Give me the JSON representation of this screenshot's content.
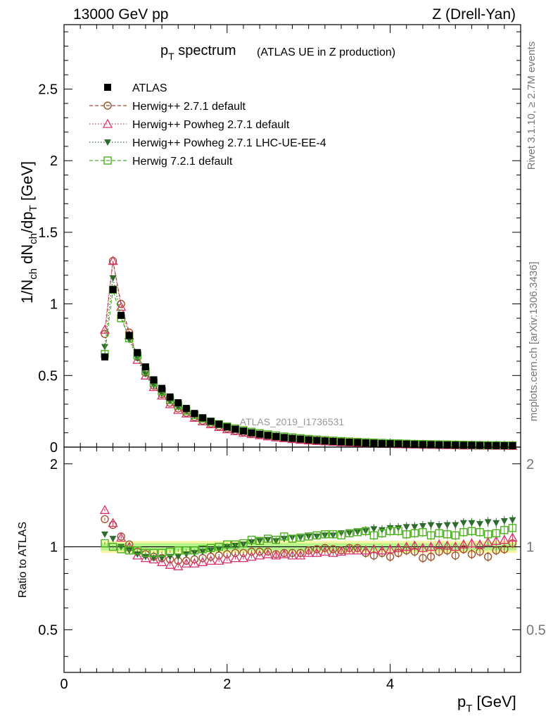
{
  "header": {
    "left": "13000 GeV pp",
    "right": "Z (Drell-Yan)"
  },
  "title": {
    "main": "p_T spectrum",
    "sub": "(ATLAS UE in Z production)"
  },
  "side": {
    "rivet": "Rivet 3.1.10, ≥ 2.7M events",
    "mcplots": "mcplots.cern.ch [arXiv:1306.3436]"
  },
  "watermark": "ATLAS_2019_I1736531",
  "chart_data": [
    {
      "type": "scatter",
      "title": "p_T spectrum (ATLAS UE in Z production)",
      "ylabel": "1/N_ch dN_ch/dp_T [GeV]",
      "xlim": [
        0,
        5.6
      ],
      "ylim": [
        0,
        2.95
      ],
      "yticks": [
        0,
        0.5,
        1,
        1.5,
        2,
        2.5
      ],
      "ytick_labels": [
        "0",
        "0.5",
        "1",
        "1.5",
        "2",
        "2.5"
      ],
      "legend": [
        {
          "label": "ATLAS",
          "marker": "filled-square",
          "color": "#000000"
        },
        {
          "label": "Herwig++ 2.7.1 default",
          "marker": "open-circle",
          "color": "#a0522d"
        },
        {
          "label": "Herwig++ Powheg 2.7.1 default",
          "marker": "open-triangle",
          "color": "#d6336c"
        },
        {
          "label": "Herwig++ Powheg 2.7.1 LHC-UE-EE-4",
          "marker": "filled-triangle-down",
          "color": "#2f6b2f"
        },
        {
          "label": "Herwig 7.2.1 default",
          "marker": "open-square",
          "color": "#4caf1e"
        }
      ],
      "x": [
        0.5,
        0.6,
        0.7,
        0.8,
        0.9,
        1.0,
        1.1,
        1.2,
        1.3,
        1.4,
        1.5,
        1.6,
        1.7,
        1.8,
        1.9,
        2.0,
        2.1,
        2.2,
        2.3,
        2.4,
        2.5,
        2.6,
        2.7,
        2.8,
        2.9,
        3.0,
        3.1,
        3.2,
        3.3,
        3.4,
        3.5,
        3.6,
        3.7,
        3.8,
        3.9,
        4.0,
        4.1,
        4.2,
        4.3,
        4.4,
        4.5,
        4.6,
        4.7,
        4.8,
        4.9,
        5.0,
        5.1,
        5.2,
        5.3,
        5.4,
        5.5
      ],
      "series": [
        {
          "name": "ATLAS",
          "values": [
            0.63,
            1.1,
            0.92,
            0.78,
            0.66,
            0.56,
            0.47,
            0.41,
            0.35,
            0.31,
            0.27,
            0.235,
            0.205,
            0.18,
            0.16,
            0.14,
            0.125,
            0.112,
            0.1,
            0.09,
            0.082,
            0.074,
            0.067,
            0.061,
            0.056,
            0.051,
            0.047,
            0.043,
            0.04,
            0.037,
            0.034,
            0.032,
            0.029,
            0.027,
            0.025,
            0.024,
            0.022,
            0.021,
            0.019,
            0.018,
            0.017,
            0.016,
            0.015,
            0.014,
            0.013,
            0.013,
            0.012,
            0.011,
            0.011,
            0.01,
            0.01
          ]
        },
        {
          "name": "Herwig++ 2.7.1 default",
          "values": [
            0.79,
            1.3,
            1.0,
            0.8,
            0.63,
            0.52,
            0.43,
            0.37,
            0.31,
            0.27,
            0.24,
            0.21,
            0.185,
            0.165,
            0.145,
            0.13,
            0.115,
            0.104,
            0.094,
            0.085,
            0.077,
            0.069,
            0.063,
            0.057,
            0.052,
            0.048,
            0.044,
            0.041,
            0.038,
            0.035,
            0.032,
            0.03,
            0.027,
            0.025,
            0.023,
            0.022,
            0.02,
            0.019,
            0.018,
            0.016,
            0.016,
            0.015,
            0.014,
            0.013,
            0.012,
            0.012,
            0.011,
            0.011,
            0.01,
            0.01,
            0.009
          ]
        },
        {
          "name": "Herwig++ Powheg 2.7.1 default",
          "values": [
            0.82,
            1.3,
            0.98,
            0.78,
            0.61,
            0.5,
            0.42,
            0.36,
            0.3,
            0.26,
            0.235,
            0.205,
            0.18,
            0.16,
            0.14,
            0.125,
            0.112,
            0.1,
            0.091,
            0.083,
            0.075,
            0.068,
            0.062,
            0.056,
            0.051,
            0.047,
            0.043,
            0.04,
            0.037,
            0.034,
            0.032,
            0.029,
            0.027,
            0.025,
            0.023,
            0.022,
            0.021,
            0.019,
            0.018,
            0.017,
            0.016,
            0.015,
            0.014,
            0.013,
            0.012,
            0.012,
            0.011,
            0.011,
            0.01,
            0.01,
            0.009
          ]
        },
        {
          "name": "Herwig++ Powheg 2.7.1 LHC-UE-EE-4",
          "values": [
            0.7,
            1.18,
            0.92,
            0.75,
            0.62,
            0.51,
            0.43,
            0.37,
            0.32,
            0.28,
            0.25,
            0.22,
            0.195,
            0.175,
            0.157,
            0.142,
            0.128,
            0.116,
            0.105,
            0.095,
            0.087,
            0.079,
            0.072,
            0.066,
            0.061,
            0.056,
            0.051,
            0.047,
            0.044,
            0.041,
            0.038,
            0.035,
            0.033,
            0.031,
            0.029,
            0.027,
            0.025,
            0.024,
            0.022,
            0.021,
            0.02,
            0.019,
            0.018,
            0.017,
            0.016,
            0.015,
            0.014,
            0.013,
            0.013,
            0.012,
            0.012
          ]
        },
        {
          "name": "Herwig 7.2.1 default",
          "values": [
            0.65,
            1.1,
            0.9,
            0.76,
            0.64,
            0.53,
            0.45,
            0.39,
            0.33,
            0.29,
            0.255,
            0.225,
            0.2,
            0.178,
            0.16,
            0.144,
            0.13,
            0.118,
            0.107,
            0.097,
            0.089,
            0.081,
            0.074,
            0.068,
            0.062,
            0.057,
            0.053,
            0.049,
            0.045,
            0.042,
            0.039,
            0.036,
            0.034,
            0.031,
            0.029,
            0.027,
            0.026,
            0.024,
            0.022,
            0.021,
            0.02,
            0.019,
            0.018,
            0.017,
            0.016,
            0.015,
            0.014,
            0.013,
            0.013,
            0.012,
            0.012
          ]
        }
      ]
    },
    {
      "type": "scatter",
      "ylabel": "Ratio to ATLAS",
      "xlabel": "p_T [GeV]",
      "xlim": [
        0,
        5.6
      ],
      "ylim": [
        0.35,
        2.3
      ],
      "xticks": [
        0,
        2,
        4
      ],
      "xtick_labels": [
        "0",
        "2",
        "4"
      ],
      "yticks": [
        0.5,
        1,
        2
      ],
      "ytick_labels": [
        "0.5",
        "1",
        "2"
      ],
      "reference_line": 1,
      "band": {
        "inner": [
          0.97,
          1.03
        ],
        "outer": [
          0.95,
          1.05
        ]
      },
      "x": [
        0.5,
        0.6,
        0.7,
        0.8,
        0.9,
        1.0,
        1.1,
        1.2,
        1.3,
        1.4,
        1.5,
        1.6,
        1.7,
        1.8,
        1.9,
        2.0,
        2.1,
        2.2,
        2.3,
        2.4,
        2.5,
        2.6,
        2.7,
        2.8,
        2.9,
        3.0,
        3.1,
        3.2,
        3.3,
        3.4,
        3.5,
        3.6,
        3.7,
        3.8,
        3.9,
        4.0,
        4.1,
        4.2,
        4.3,
        4.4,
        4.5,
        4.6,
        4.7,
        4.8,
        4.9,
        5.0,
        5.1,
        5.2,
        5.3,
        5.4,
        5.5
      ],
      "series": [
        {
          "name": "Herwig++ 2.7.1 default",
          "values": [
            1.26,
            1.2,
            1.09,
            1.02,
            0.96,
            0.94,
            0.92,
            0.91,
            0.9,
            0.89,
            0.89,
            0.9,
            0.91,
            0.92,
            0.93,
            0.94,
            0.95,
            0.95,
            0.96,
            0.96,
            0.96,
            0.94,
            0.95,
            0.95,
            0.95,
            0.97,
            0.98,
            0.99,
            0.98,
            0.97,
            0.99,
            0.99,
            0.95,
            0.93,
            0.95,
            0.92,
            0.95,
            0.97,
            0.96,
            0.91,
            0.92,
            0.96,
            0.97,
            0.93,
            0.98,
            0.94,
            0.96,
            0.92,
            0.97,
            0.98,
            1.03
          ]
        },
        {
          "name": "Herwig++ Powheg 2.7.1 default",
          "values": [
            1.36,
            1.22,
            1.08,
            1.0,
            0.93,
            0.91,
            0.9,
            0.88,
            0.86,
            0.85,
            0.87,
            0.87,
            0.88,
            0.89,
            0.89,
            0.9,
            0.91,
            0.91,
            0.92,
            0.93,
            0.94,
            0.93,
            0.94,
            0.93,
            0.93,
            0.95,
            0.95,
            0.96,
            0.95,
            0.96,
            0.97,
            0.97,
            0.97,
            0.98,
            0.97,
            0.98,
            0.99,
            1.0,
            1.01,
            0.99,
            1.0,
            1.02,
            1.01,
            1.0,
            1.02,
            1.03,
            1.02,
            1.04,
            1.05,
            1.06,
            1.08
          ]
        },
        {
          "name": "Herwig++ Powheg 2.7.1 LHC-UE-EE-4",
          "values": [
            1.11,
            1.07,
            1.0,
            0.97,
            0.94,
            0.92,
            0.91,
            0.91,
            0.92,
            0.92,
            0.94,
            0.95,
            0.96,
            0.97,
            0.98,
            1.0,
            1.01,
            1.02,
            1.04,
            1.05,
            1.06,
            1.05,
            1.07,
            1.08,
            1.08,
            1.09,
            1.09,
            1.1,
            1.1,
            1.12,
            1.12,
            1.13,
            1.14,
            1.16,
            1.15,
            1.17,
            1.17,
            1.18,
            1.18,
            1.19,
            1.2,
            1.19,
            1.2,
            1.2,
            1.22,
            1.22,
            1.21,
            1.23,
            1.22,
            1.24,
            1.25
          ]
        },
        {
          "name": "Herwig 7.2.1 default",
          "values": [
            1.03,
            1.0,
            0.98,
            0.97,
            0.97,
            0.95,
            0.95,
            0.95,
            0.96,
            0.97,
            0.97,
            0.97,
            0.98,
            0.99,
            1.0,
            1.02,
            1.02,
            1.03,
            1.06,
            1.05,
            1.07,
            1.06,
            1.09,
            1.07,
            1.08,
            1.09,
            1.1,
            1.11,
            1.11,
            1.1,
            1.12,
            1.13,
            1.14,
            1.1,
            1.12,
            1.14,
            1.14,
            1.11,
            1.12,
            1.13,
            1.1,
            1.12,
            1.11,
            1.1,
            1.13,
            1.14,
            1.13,
            1.11,
            1.12,
            1.15,
            1.17
          ]
        }
      ]
    }
  ]
}
